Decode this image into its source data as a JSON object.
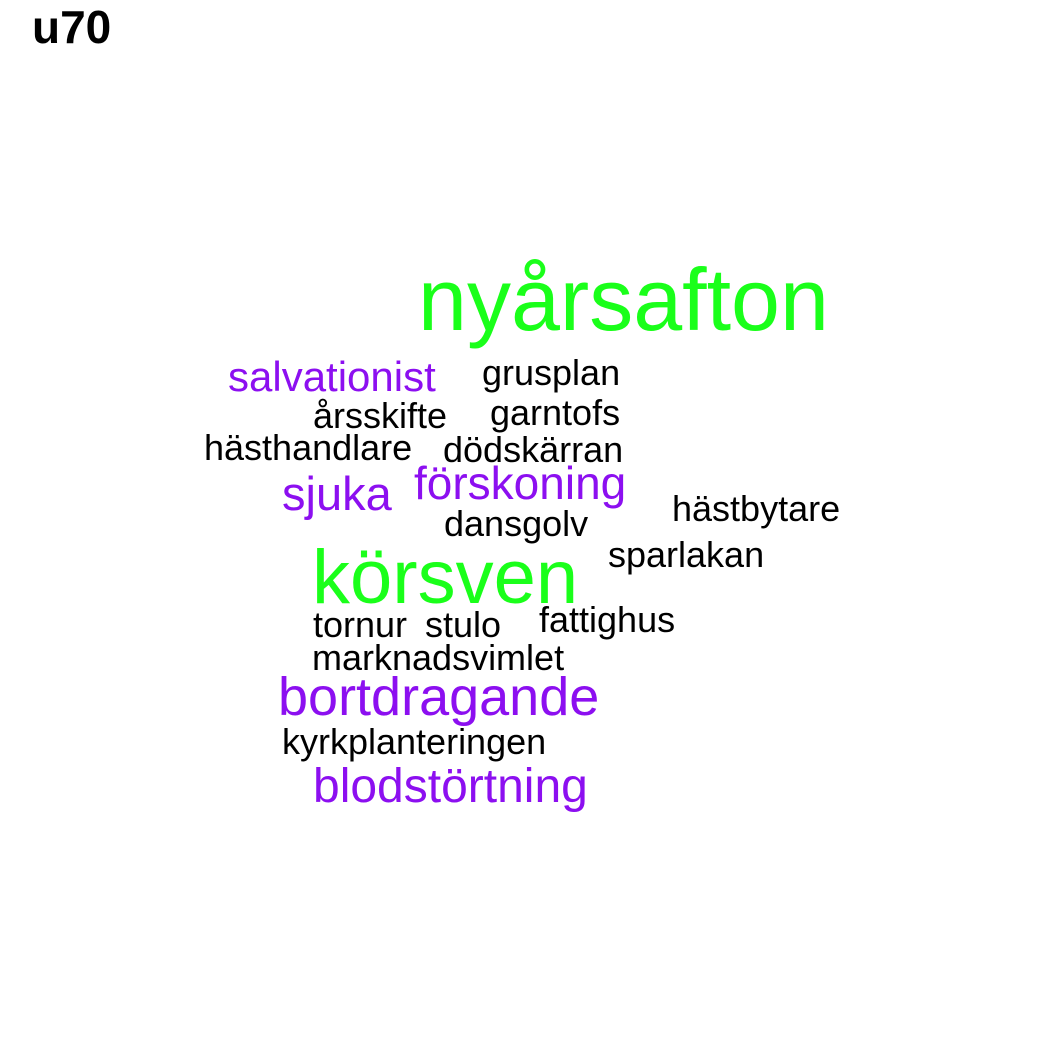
{
  "title": "u70",
  "colors": {
    "green": "#1aff1a",
    "purple": "#8c0ff0",
    "black": "#000000"
  },
  "words": [
    {
      "text": "nyårsafton",
      "color": "green"
    },
    {
      "text": "salvationist",
      "color": "purple"
    },
    {
      "text": "grusplan",
      "color": "black"
    },
    {
      "text": "årsskifte",
      "color": "black"
    },
    {
      "text": "garntofs",
      "color": "black"
    },
    {
      "text": "hästhandlare",
      "color": "black"
    },
    {
      "text": "dödskärran",
      "color": "black"
    },
    {
      "text": "sjuka",
      "color": "purple"
    },
    {
      "text": "förskoning",
      "color": "purple"
    },
    {
      "text": "hästbytare",
      "color": "black"
    },
    {
      "text": "dansgolv",
      "color": "black"
    },
    {
      "text": "sparlakan",
      "color": "black"
    },
    {
      "text": "körsven",
      "color": "green"
    },
    {
      "text": "tornur",
      "color": "black"
    },
    {
      "text": "stulo",
      "color": "black"
    },
    {
      "text": "fattighus",
      "color": "black"
    },
    {
      "text": "marknadsvimlet",
      "color": "black"
    },
    {
      "text": "bortdragande",
      "color": "purple"
    },
    {
      "text": "kyrkplanteringen",
      "color": "black"
    },
    {
      "text": "blodstörtning",
      "color": "purple"
    }
  ]
}
